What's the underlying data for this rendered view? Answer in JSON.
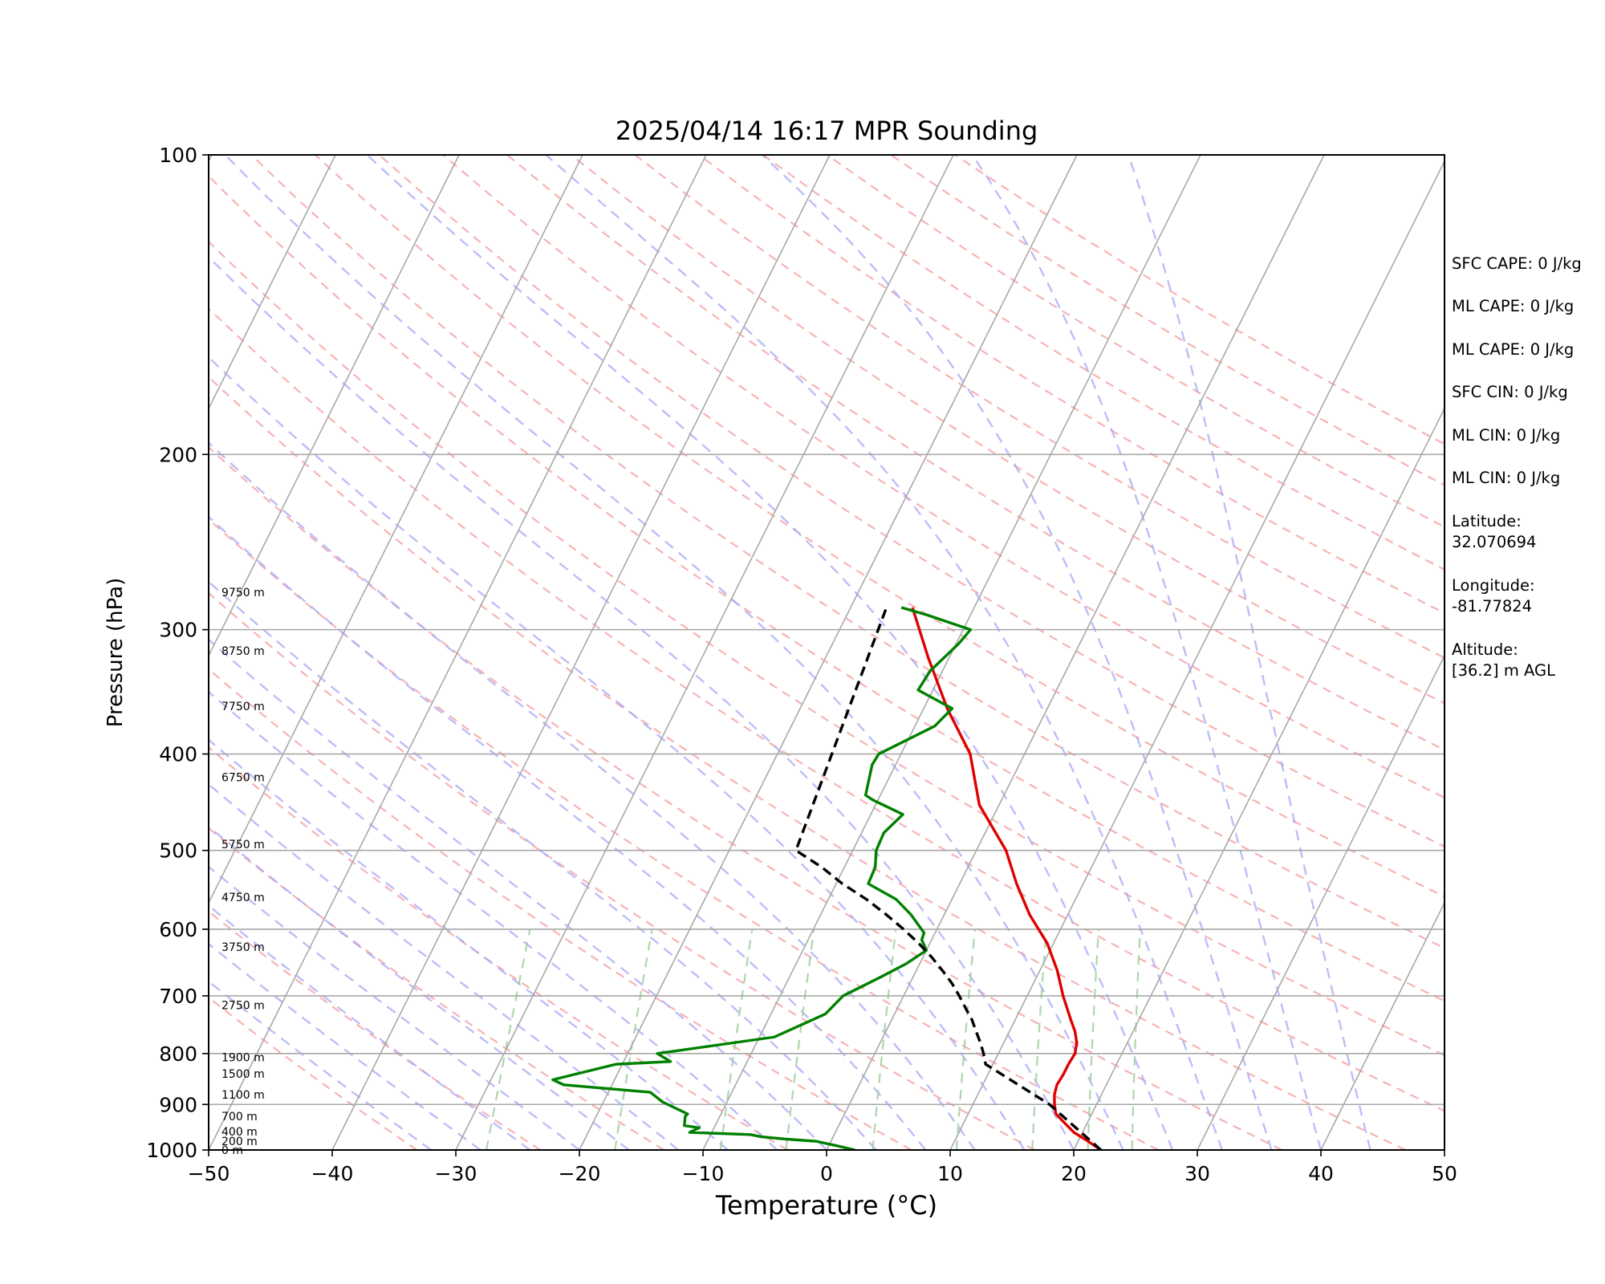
{
  "chart_data": {
    "type": "line",
    "title": "2025/04/14 16:17 MPR Sounding",
    "xlabel": "Temperature (°C)",
    "ylabel": "Pressure (hPa)",
    "xlim": [
      -50,
      50
    ],
    "ylim": [
      1000,
      100
    ],
    "y_scale": "log",
    "x_ticks": [
      "−50",
      "−40",
      "−30",
      "−20",
      "−10",
      "0",
      "10",
      "20",
      "30",
      "40",
      "50"
    ],
    "y_ticks": [
      "100",
      "200",
      "300",
      "400",
      "500",
      "600",
      "700",
      "800",
      "900",
      "1000"
    ],
    "skew_plot": true,
    "grid": true,
    "series": [
      {
        "color": "#e00000",
        "x": [
          22.2,
          20.8,
          19.3,
          18.2,
          17.1,
          16.6,
          16.2,
          16.0,
          16.1,
          16.1,
          16.2,
          15.9,
          15.3,
          14.5,
          12.9,
          11.4,
          9.5,
          6.9,
          4.6,
          2.4,
          -1.6,
          -4.4,
          -8.1,
          -11.7,
          -15.0
        ],
        "y": [
          1000,
          980,
          960,
          940,
          920,
          900,
          880,
          860,
          840,
          820,
          800,
          780,
          760,
          740,
          700,
          660,
          620,
          580,
          540,
          500,
          450,
          400,
          360,
          320,
          285
        ]
      },
      {
        "color": "#008000",
        "x": [
          2.3,
          0.6,
          -1.2,
          -3.8,
          -5.8,
          -6.8,
          -11.8,
          -11.2,
          -12.5,
          -12.8,
          -12.7,
          -15.2,
          -16.6,
          -23.9,
          -25.0,
          -20.5,
          -16.2,
          -17.6,
          -8.8,
          -5.6,
          -4.9,
          -2.6,
          -1.1,
          0.0,
          -0.8,
          -0.9,
          -2.7,
          -4.5,
          -7.4,
          -7.5,
          -8.1,
          -8.2,
          -7.4,
          -10.4,
          -11.2,
          -11.9,
          -11.8,
          -8.4,
          -7.7,
          -11.2,
          -11.0,
          -9.8,
          -9.4,
          -13.5,
          -15.9
        ],
        "y": [
          1000,
          990,
          980,
          975,
          970,
          965,
          960,
          950,
          945,
          925,
          920,
          895,
          875,
          860,
          850,
          820,
          815,
          800,
          770,
          730,
          700,
          670,
          650,
          630,
          615,
          605,
          580,
          560,
          540,
          520,
          500,
          480,
          460,
          445,
          440,
          410,
          400,
          375,
          360,
          345,
          330,
          310,
          300,
          290,
          285
        ]
      },
      {
        "color": "#000000",
        "dashed": true,
        "x": [
          22.2,
          16.2,
          9.4,
          8.8,
          8.1,
          7.3,
          6.5,
          5.5,
          4.5,
          3.4,
          2.1,
          0.7,
          -0.9,
          -2.7,
          -4.7,
          -6.9,
          -9.5,
          -11.8,
          -14.6,
          -17.1
        ],
        "y": [
          1000,
          900,
          820,
          800,
          780,
          760,
          740,
          720,
          700,
          680,
          660,
          640,
          620,
          600,
          580,
          560,
          540,
          520,
          500,
          285
        ]
      }
    ],
    "height_labels": [
      "9750 m",
      "8750 m",
      "7750 m",
      "6750 m",
      "5750 m",
      "4750 m",
      "3750 m",
      "2750 m",
      "1900 m",
      "1500 m",
      "1100 m",
      "700 m",
      "400 m",
      "200 m",
      "0 m"
    ],
    "height_pressures": [
      275,
      315,
      358,
      422,
      493,
      557,
      625,
      715,
      807,
      838,
      880,
      925,
      958,
      980,
      1000
    ]
  },
  "side_panel": {
    "items": [
      "SFC CAPE: 0 J/kg",
      "ML CAPE: 0 J/kg",
      "ML CAPE: 0 J/kg",
      "SFC CIN: 0 J/kg",
      "ML CIN: 0 J/kg",
      "ML CIN: 0 J/kg",
      "Latitude:\n32.070694",
      "Longitude:\n-81.77824",
      "Altitude:\n[36.2] m AGL"
    ]
  }
}
